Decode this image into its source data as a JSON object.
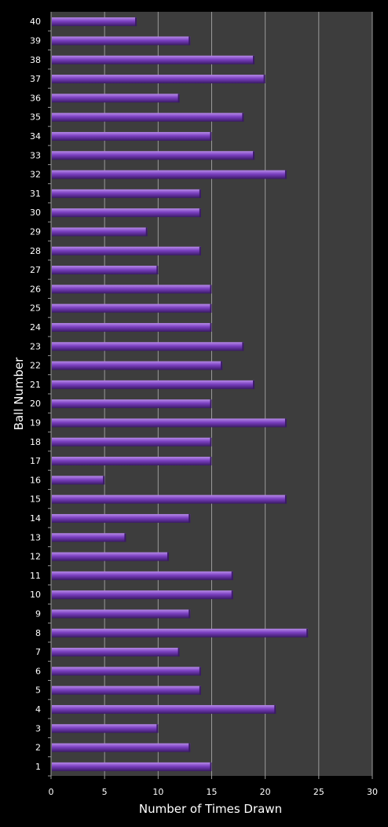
{
  "chart_data": {
    "type": "bar",
    "orientation": "horizontal",
    "title": "",
    "xlabel": "Number of Times Drawn",
    "ylabel": "Ball Number",
    "xlim": [
      0,
      30
    ],
    "xticks": [
      0,
      5,
      10,
      15,
      20,
      25,
      30
    ],
    "grid": "vertical",
    "legend": "none",
    "colors": {
      "background": "#000000",
      "plot_area": "#3d3d3d",
      "grid": "#9a9a9a",
      "bar": "#7a3fc0",
      "bar_highlight": "#b68ae8",
      "bar_shadow": "#3a1a66",
      "text": "#ffffff"
    },
    "categories": [
      "1",
      "2",
      "3",
      "4",
      "5",
      "6",
      "7",
      "8",
      "9",
      "10",
      "11",
      "12",
      "13",
      "14",
      "15",
      "16",
      "17",
      "18",
      "19",
      "20",
      "21",
      "22",
      "23",
      "24",
      "25",
      "26",
      "27",
      "28",
      "29",
      "30",
      "31",
      "32",
      "33",
      "34",
      "35",
      "36",
      "37",
      "38",
      "39",
      "40"
    ],
    "values": [
      15,
      13,
      10,
      21,
      14,
      14,
      12,
      24,
      13,
      17,
      17,
      11,
      7,
      13,
      22,
      5,
      15,
      15,
      22,
      15,
      19,
      16,
      18,
      15,
      15,
      15,
      10,
      14,
      9,
      14,
      14,
      22,
      19,
      15,
      18,
      12,
      20,
      19,
      13,
      8
    ]
  }
}
